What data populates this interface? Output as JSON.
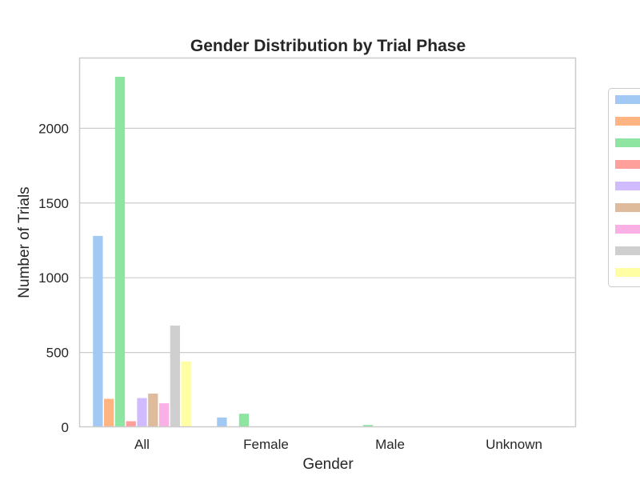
{
  "chart_data": {
    "type": "bar",
    "title": "Gender Distribution by Trial Phase",
    "xlabel": "Gender",
    "ylabel": "Number of Trials",
    "categories": [
      "All",
      "Female",
      "Male",
      "Unknown"
    ],
    "ylim": [
      0,
      2350
    ],
    "yticks": [
      0,
      500,
      1000,
      1500,
      2000
    ],
    "grid": "horizontal",
    "legend": {
      "placement": "outside right",
      "labels_visible": false
    },
    "series": [
      {
        "color": "#a1c9f4",
        "values": [
          1280,
          65,
          3,
          0
        ]
      },
      {
        "color": "#ffb482",
        "values": [
          190,
          0,
          0,
          0
        ]
      },
      {
        "color": "#8de5a1",
        "values": [
          2345,
          90,
          15,
          0
        ]
      },
      {
        "color": "#ff9f9b",
        "values": [
          40,
          0,
          0,
          0
        ]
      },
      {
        "color": "#d0bbff",
        "values": [
          195,
          0,
          0,
          0
        ]
      },
      {
        "color": "#debb9b",
        "values": [
          225,
          0,
          0,
          0
        ]
      },
      {
        "color": "#fab0e4",
        "values": [
          160,
          0,
          0,
          0
        ]
      },
      {
        "color": "#cfcfcf",
        "values": [
          680,
          0,
          0,
          0
        ]
      },
      {
        "color": "#fffea3",
        "values": [
          440,
          0,
          0,
          0
        ]
      }
    ]
  }
}
